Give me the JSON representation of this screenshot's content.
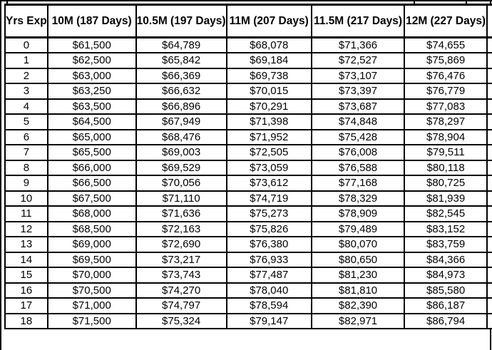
{
  "chart_data": {
    "type": "table",
    "columns": [
      "Yrs Exp",
      "10M (187 Days)",
      "10.5M (197 Days)",
      "11M (207 Days)",
      "11.5M (217 Days)",
      "12M (227 Days)"
    ],
    "rows": [
      [
        "0",
        "$61,500",
        "$64,789",
        "$68,078",
        "$71,366",
        "$74,655"
      ],
      [
        "1",
        "$62,500",
        "$65,842",
        "$69,184",
        "$72,527",
        "$75,869"
      ],
      [
        "2",
        "$63,000",
        "$66,369",
        "$69,738",
        "$73,107",
        "$76,476"
      ],
      [
        "3",
        "$63,250",
        "$66,632",
        "$70,015",
        "$73,397",
        "$76,779"
      ],
      [
        "4",
        "$63,500",
        "$66,896",
        "$70,291",
        "$73,687",
        "$77,083"
      ],
      [
        "5",
        "$64,500",
        "$67,949",
        "$71,398",
        "$74,848",
        "$78,297"
      ],
      [
        "6",
        "$65,000",
        "$68,476",
        "$71,952",
        "$75,428",
        "$78,904"
      ],
      [
        "7",
        "$65,500",
        "$69,003",
        "$72,505",
        "$76,008",
        "$79,511"
      ],
      [
        "8",
        "$66,000",
        "$69,529",
        "$73,059",
        "$76,588",
        "$80,118"
      ],
      [
        "9",
        "$66,500",
        "$70,056",
        "$73,612",
        "$77,168",
        "$80,725"
      ],
      [
        "10",
        "$67,500",
        "$71,110",
        "$74,719",
        "$78,329",
        "$81,939"
      ],
      [
        "11",
        "$68,000",
        "$71,636",
        "$75,273",
        "$78,909",
        "$82,545"
      ],
      [
        "12",
        "$68,500",
        "$72,163",
        "$75,826",
        "$79,489",
        "$83,152"
      ],
      [
        "13",
        "$69,000",
        "$72,690",
        "$76,380",
        "$80,070",
        "$83,759"
      ],
      [
        "14",
        "$69,500",
        "$73,217",
        "$76,933",
        "$80,650",
        "$84,366"
      ],
      [
        "15",
        "$70,000",
        "$73,743",
        "$77,487",
        "$81,230",
        "$84,973"
      ],
      [
        "16",
        "$70,500",
        "$74,270",
        "$78,040",
        "$81,810",
        "$85,580"
      ],
      [
        "17",
        "$71,000",
        "$74,797",
        "$78,594",
        "$82,390",
        "$86,187"
      ],
      [
        "18",
        "$71,500",
        "$75,324",
        "$79,147",
        "$82,971",
        "$86,794"
      ]
    ]
  },
  "colors": {
    "grid_border": "#000000",
    "cell_background": "#ffffff",
    "text": "#000000"
  }
}
